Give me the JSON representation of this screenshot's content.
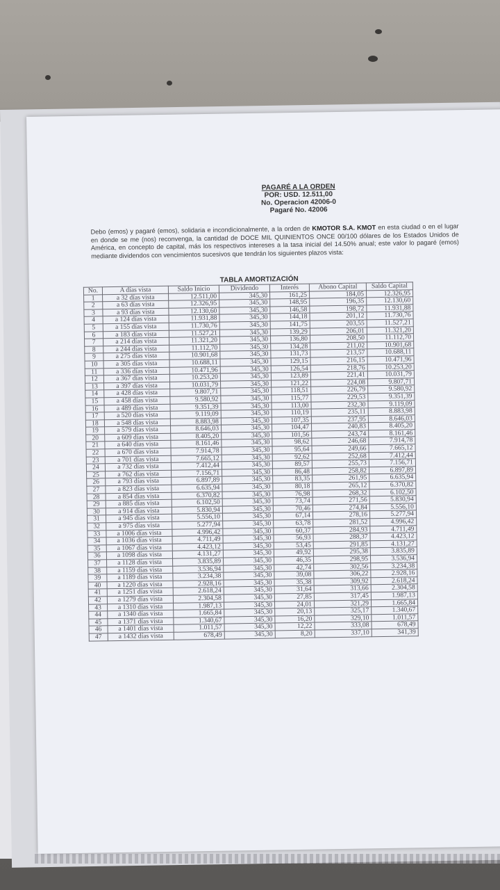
{
  "document": {
    "title": "PAGARÉ A LA ORDEN",
    "amount": "POR: USD. 12.511,00",
    "operation": "No. Operacion 42006-0",
    "note_number": "Pagaré No. 42006",
    "body_prefix": "Debo (emos) y pagaré (emos), solidaria e incondicionalmente, a la orden de ",
    "creditor": "KMOTOR S.A. KMOT",
    "body_suffix": " en esta ciudad o en el lugar en donde se me (nos) reconvenga, la cantidad de DOCE MIL QUINIENTOS ONCE 00/100 dólares de los Estados Unidos de América, en concepto de capital, más los respectivos intereses a la tasa inicial del 14.50% anual; este valor lo pagaré (emos) mediante dividendos con vencimientos sucesivos que tendrán los siguientes plazos vista:"
  },
  "table": {
    "caption": "TABLA AMORTIZACIÓN",
    "headers": [
      "No.",
      "A días vista",
      "Saldo Inicio",
      "Dividendo",
      "Interés",
      "Abono Capital",
      "Saldo Capital"
    ],
    "rows": [
      [
        "1",
        "a 32 días vista",
        "12.511,00",
        "345,30",
        "161,25",
        "184,05",
        "12.326,95"
      ],
      [
        "2",
        "a 63 días vista",
        "12.326,95",
        "345,30",
        "148,95",
        "196,35",
        "12.130,60"
      ],
      [
        "3",
        "a 93 días vista",
        "12.130,60",
        "345,30",
        "146,58",
        "198,72",
        "11.931,88"
      ],
      [
        "4",
        "a 124 días vista",
        "11.931,88",
        "345,30",
        "144,18",
        "201,12",
        "11.730,76"
      ],
      [
        "5",
        "a 155 días vista",
        "11.730,76",
        "345,30",
        "141,75",
        "203,55",
        "11.527,21"
      ],
      [
        "6",
        "a 183 días vista",
        "11.527,21",
        "345,30",
        "139,29",
        "206,01",
        "11.321,20"
      ],
      [
        "7",
        "a 214 días vista",
        "11.321,20",
        "345,30",
        "136,80",
        "208,50",
        "11.112,70"
      ],
      [
        "8",
        "a 244 días vista",
        "11.112,70",
        "345,30",
        "134,28",
        "211,02",
        "10.901,68"
      ],
      [
        "9",
        "a 275 días vista",
        "10.901,68",
        "345,30",
        "131,73",
        "213,57",
        "10.688,11"
      ],
      [
        "10",
        "a 305 días vista",
        "10.688,11",
        "345,30",
        "129,15",
        "216,15",
        "10.471,96"
      ],
      [
        "11",
        "a 336 días vista",
        "10.471,96",
        "345,30",
        "126,54",
        "218,76",
        "10.253,20"
      ],
      [
        "12",
        "a 367 días vista",
        "10.253,20",
        "345,30",
        "123,89",
        "221,41",
        "10.031,79"
      ],
      [
        "13",
        "a 397 días vista",
        "10.031,79",
        "345,30",
        "121,22",
        "224,08",
        "9.807,71"
      ],
      [
        "14",
        "a 428 días vista",
        "9.807,71",
        "345,30",
        "118,51",
        "226,79",
        "9.580,92"
      ],
      [
        "15",
        "a 458 días vista",
        "9.580,92",
        "345,30",
        "115,77",
        "229,53",
        "9.351,39"
      ],
      [
        "16",
        "a 489 días vista",
        "9.351,39",
        "345,30",
        "113,00",
        "232,30",
        "9.119,09"
      ],
      [
        "17",
        "a 520 días vista",
        "9.119,09",
        "345,30",
        "110,19",
        "235,11",
        "8.883,98"
      ],
      [
        "18",
        "a 548 días vista",
        "8.883,98",
        "345,30",
        "107,35",
        "237,95",
        "8.646,03"
      ],
      [
        "19",
        "a 579 días vista",
        "8.646,03",
        "345,30",
        "104,47",
        "240,83",
        "8.405,20"
      ],
      [
        "20",
        "a 609 días vista",
        "8.405,20",
        "345,30",
        "101,56",
        "243,74",
        "8.161,46"
      ],
      [
        "21",
        "a 640 días vista",
        "8.161,46",
        "345,30",
        "98,62",
        "246,68",
        "7.914,78"
      ],
      [
        "22",
        "a 670 días vista",
        "7.914,78",
        "345,30",
        "95,64",
        "249,66",
        "7.665,12"
      ],
      [
        "23",
        "a 701 días vista",
        "7.665,12",
        "345,30",
        "92,62",
        "252,68",
        "7.412,44"
      ],
      [
        "24",
        "a 732 días vista",
        "7.412,44",
        "345,30",
        "89,57",
        "255,73",
        "7.156,71"
      ],
      [
        "25",
        "a 762 días vista",
        "7.156,71",
        "345,30",
        "86,48",
        "258,82",
        "6.897,89"
      ],
      [
        "26",
        "a 793 días vista",
        "6.897,89",
        "345,30",
        "83,35",
        "261,95",
        "6.635,94"
      ],
      [
        "27",
        "a 823 días vista",
        "6.635,94",
        "345,30",
        "80,18",
        "265,12",
        "6.370,82"
      ],
      [
        "28",
        "a 854 días vista",
        "6.370,82",
        "345,30",
        "76,98",
        "268,32",
        "6.102,50"
      ],
      [
        "29",
        "a 885 días vista",
        "6.102,50",
        "345,30",
        "73,74",
        "271,56",
        "5.830,94"
      ],
      [
        "30",
        "a 914 días vista",
        "5.830,94",
        "345,30",
        "70,46",
        "274,84",
        "5.556,10"
      ],
      [
        "31",
        "a 945 días vista",
        "5.556,10",
        "345,30",
        "67,14",
        "278,16",
        "5.277,94"
      ],
      [
        "32",
        "a 975 días vista",
        "5.277,94",
        "345,30",
        "63,78",
        "281,52",
        "4.996,42"
      ],
      [
        "33",
        "a 1006 días vista",
        "4.996,42",
        "345,30",
        "60,37",
        "284,93",
        "4.711,49"
      ],
      [
        "34",
        "a 1036 días vista",
        "4.711,49",
        "345,30",
        "56,93",
        "288,37",
        "4.423,12"
      ],
      [
        "35",
        "a 1067 días vista",
        "4.423,12",
        "345,30",
        "53,45",
        "291,85",
        "4.131,27"
      ],
      [
        "36",
        "a 1098 días vista",
        "4.131,27",
        "345,30",
        "49,92",
        "295,38",
        "3.835,89"
      ],
      [
        "37",
        "a 1128 días vista",
        "3.835,89",
        "345,30",
        "46,35",
        "298,95",
        "3.536,94"
      ],
      [
        "38",
        "a 1159 días vista",
        "3.536,94",
        "345,30",
        "42,74",
        "302,56",
        "3.234,38"
      ],
      [
        "39",
        "a 1189 días vista",
        "3.234,38",
        "345,30",
        "39,08",
        "306,22",
        "2.928,16"
      ],
      [
        "40",
        "a 1220 días vista",
        "2.928,16",
        "345,30",
        "35,38",
        "309,92",
        "2.618,24"
      ],
      [
        "41",
        "a 1251 días vista",
        "2.618,24",
        "345,30",
        "31,64",
        "313,66",
        "2.304,58"
      ],
      [
        "42",
        "a 1279 días vista",
        "2.304,58",
        "345,30",
        "27,85",
        "317,45",
        "1.987,13"
      ],
      [
        "43",
        "a 1310 días vista",
        "1.987,13",
        "345,30",
        "24,01",
        "321,29",
        "1.665,84"
      ],
      [
        "44",
        "a 1340 días vista",
        "1.665,84",
        "345,30",
        "20,13",
        "325,17",
        "1.340,67"
      ],
      [
        "45",
        "a 1371 días vista",
        "1.340,67",
        "345,30",
        "16,20",
        "329,10",
        "1.011,57"
      ],
      [
        "46",
        "a 1401 días vista",
        "1.011,57",
        "345,30",
        "12,22",
        "333,08",
        "678,49"
      ],
      [
        "47",
        "a 1432 días vista",
        "678,49",
        "345,30",
        "8,20",
        "337,10",
        "341,39"
      ]
    ]
  }
}
